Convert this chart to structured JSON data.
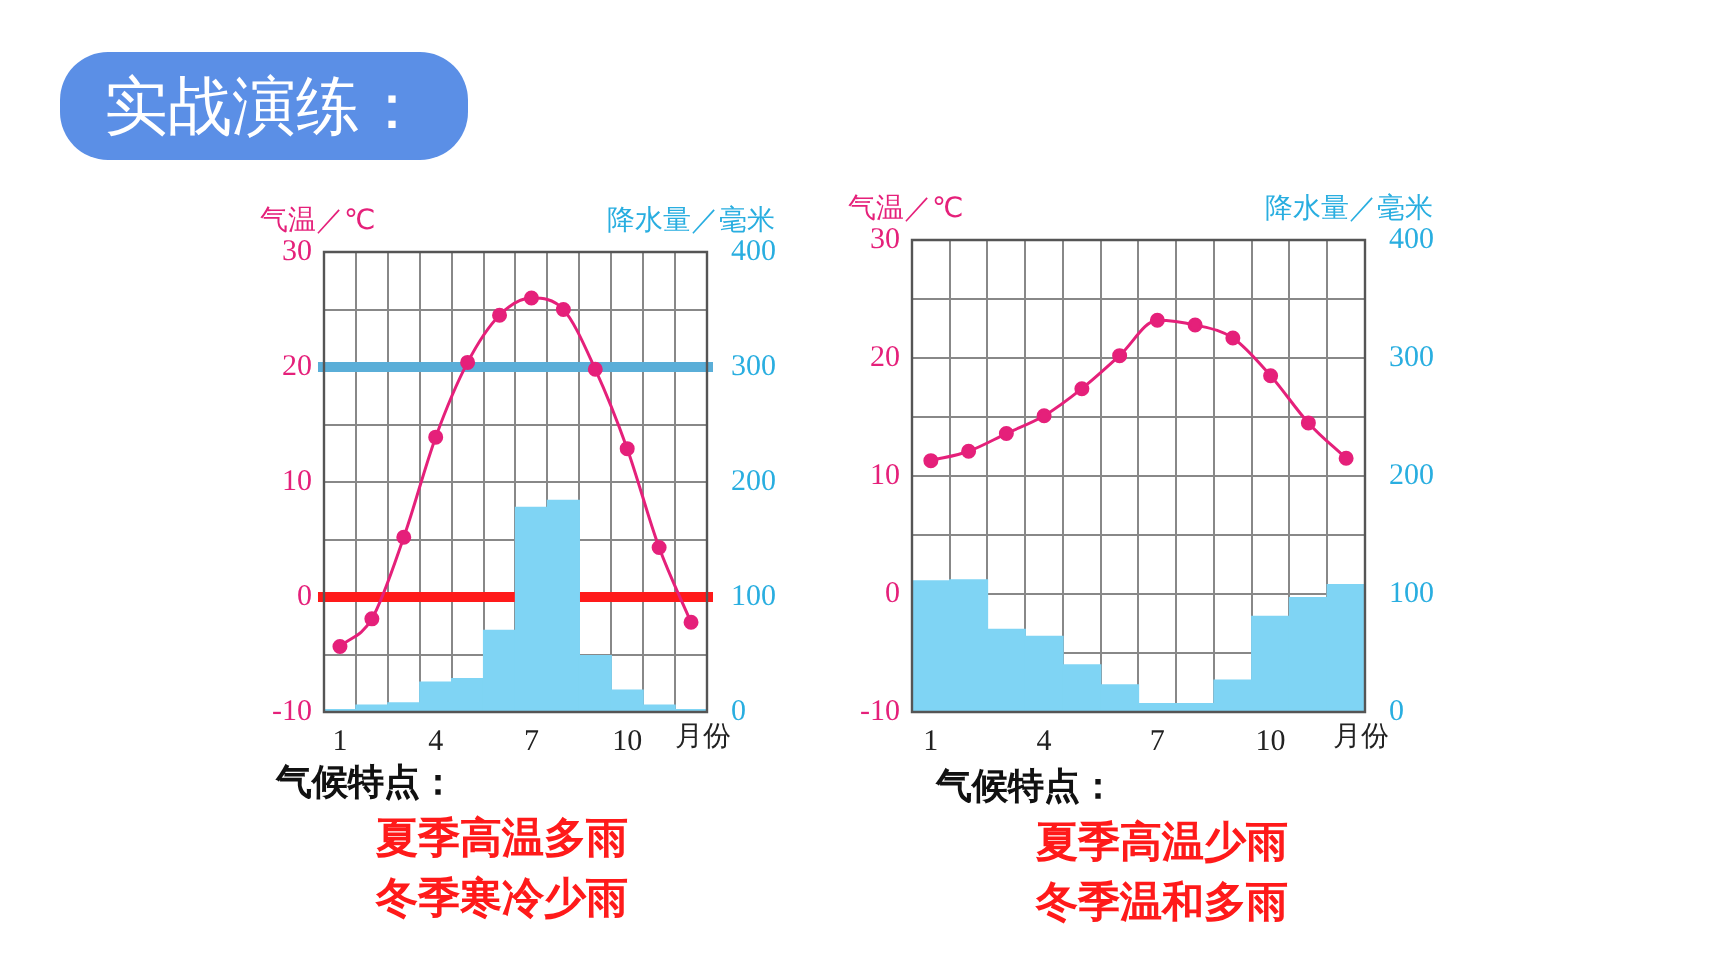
{
  "chart_data": [
    {
      "type": "bar",
      "title": "实战演练：",
      "categories": [
        "1",
        null,
        null,
        "4",
        null,
        null,
        "7",
        null,
        null,
        "10",
        null,
        null
      ],
      "xlabel": "月份",
      "ylabel": "气温／℃",
      "y2label": "降水量／毫米",
      "series": [
        {
          "axis": "y2",
          "color": "#7fd4f4",
          "values": [
            2,
            6,
            8,
            26,
            29,
            71,
            178,
            184,
            49,
            19,
            6,
            2
          ]
        },
        {
          "type": "line",
          "axis": "y",
          "color": "#e5207a",
          "marker": "circle",
          "values": [
            -4.3,
            -1.9,
            5.2,
            13.9,
            20.4,
            24.5,
            26,
            25,
            19.8,
            12.9,
            4.3,
            -2.2
          ]
        }
      ],
      "ylim": [
        -10,
        30
      ],
      "yticks": [
        -10,
        {
          "value": -5,
          "label": null
        },
        0,
        {
          "value": 5,
          "label": null
        },
        10,
        {
          "value": 15,
          "label": null
        },
        20,
        {
          "value": 25,
          "label": null
        },
        30
      ],
      "y2lim": [
        0,
        400
      ],
      "y2ticks": [
        0,
        100,
        200,
        300,
        400
      ],
      "grid": true,
      "legend": false,
      "ref_lines": [
        {
          "axis": "y",
          "value": 20,
          "color": "#5aaed8"
        },
        {
          "axis": "y",
          "value": 0,
          "color": "#ff1a1a"
        }
      ],
      "annotations": [
        "气候特点：",
        "夏季高温多雨",
        "冬季寒冷少雨"
      ]
    },
    {
      "type": "bar",
      "categories": [
        "1",
        null,
        null,
        "4",
        null,
        null,
        "7",
        null,
        null,
        "10",
        null,
        null
      ],
      "xlabel": "月份",
      "ylabel": "气温／℃",
      "y2label": "降水量／毫米",
      "series": [
        {
          "axis": "y2",
          "color": "#7fd4f4",
          "values": [
            111,
            112,
            70,
            64,
            40,
            23,
            7,
            7,
            27,
            81,
            97,
            108
          ]
        },
        {
          "type": "line",
          "axis": "y",
          "color": "#e5207a",
          "marker": "circle",
          "values": [
            11.3,
            12.1,
            13.6,
            15.1,
            17.4,
            20.2,
            23.2,
            22.8,
            21.7,
            18.5,
            14.5,
            11.5
          ]
        }
      ],
      "ylim": [
        -10,
        30
      ],
      "yticks": [
        -10,
        {
          "value": -5,
          "label": null
        },
        0,
        {
          "value": 5,
          "label": null
        },
        10,
        {
          "value": 15,
          "label": null
        },
        20,
        {
          "value": 25,
          "label": null
        },
        30
      ],
      "y2lim": [
        0,
        400
      ],
      "y2ticks": [
        0,
        100,
        200,
        300,
        400
      ],
      "grid": true,
      "legend": false,
      "annotations": [
        "气候特点：",
        "夏季高温少雨",
        "冬季温和多雨"
      ]
    }
  ]
}
